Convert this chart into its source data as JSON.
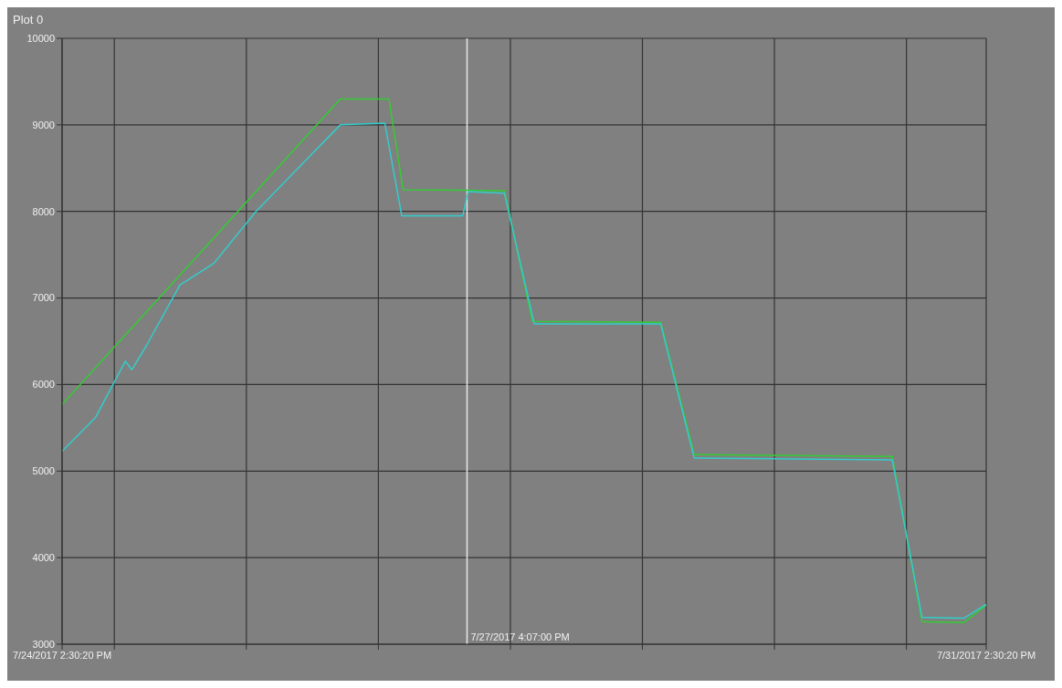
{
  "chart_data": {
    "type": "line",
    "title": "Plot 0",
    "ylim": [
      3000,
      10000
    ],
    "yticks": [
      3000,
      4000,
      5000,
      6000,
      7000,
      8000,
      9000,
      10000
    ],
    "xlim": [
      "2017-07-24T14:30",
      "2017-07-31T14:30"
    ],
    "xticks": [
      {
        "value": "2017-07-24T14:30",
        "label": "7/24/2017 2:30:20 PM"
      },
      {
        "value": "2017-07-25T00:00",
        "label": null
      },
      {
        "value": "2017-07-26T00:00",
        "label": null
      },
      {
        "value": "2017-07-27T00:00",
        "label": null
      },
      {
        "value": "2017-07-28T00:00",
        "label": null
      },
      {
        "value": "2017-07-29T00:00",
        "label": null
      },
      {
        "value": "2017-07-30T00:00",
        "label": null
      },
      {
        "value": "2017-07-31T00:00",
        "label": null
      },
      {
        "value": "2017-07-31T14:30",
        "label": "7/31/2017 2:30:20 PM"
      }
    ],
    "grid": true,
    "marker": "none",
    "line_style": "solid",
    "ref_lines": [
      {
        "axis": "x",
        "value": "2017-07-27T16:07",
        "label": "7/27/2017 4:07:00 PM",
        "color": "#e8e8e8"
      }
    ],
    "series": [
      {
        "color": "#33cc33",
        "x": [
          "2017-07-24T14:30",
          "2017-07-26T17:05",
          "2017-07-27T01:55",
          "2017-07-27T04:30",
          "2017-07-27T22:55",
          "2017-07-28T04:00",
          "2017-07-29T03:20",
          "2017-07-29T09:25",
          "2017-07-30T21:25",
          "2017-07-31T02:50",
          "2017-07-31T10:25",
          "2017-07-31T14:30"
        ],
        "values": [
          5770,
          9300,
          9300,
          8250,
          8240,
          6730,
          6720,
          5190,
          5170,
          3260,
          3250,
          3450
        ]
      },
      {
        "color": "#33cccc",
        "x": [
          "2017-07-24T14:30",
          "2017-07-24T20:35",
          "2017-07-25T02:00",
          "2017-07-25T03:10",
          "2017-07-25T05:50",
          "2017-07-25T11:55",
          "2017-07-25T18:05",
          "2017-07-26T01:45",
          "2017-07-26T09:25",
          "2017-07-26T17:05",
          "2017-07-27T01:10",
          "2017-07-27T04:15",
          "2017-07-27T15:20",
          "2017-07-27T16:20",
          "2017-07-27T22:55",
          "2017-07-28T04:20",
          "2017-07-29T03:20",
          "2017-07-29T09:25",
          "2017-07-30T21:25",
          "2017-07-31T02:50",
          "2017-07-31T10:25",
          "2017-07-31T14:30"
        ],
        "values": [
          5230,
          5620,
          6270,
          6170,
          6450,
          7150,
          7400,
          8000,
          8500,
          9000,
          9020,
          7950,
          7950,
          8230,
          8210,
          6700,
          6700,
          5150,
          5130,
          3310,
          3300,
          3460
        ]
      }
    ]
  }
}
